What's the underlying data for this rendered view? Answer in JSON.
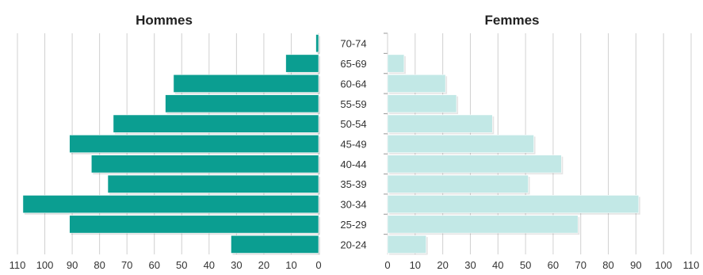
{
  "chart_data": [
    {
      "type": "bar",
      "orientation": "horizontal",
      "direction": "reversed",
      "title": "Hommes",
      "categories": [
        "20-24",
        "25-29",
        "30-34",
        "35-39",
        "40-44",
        "45-49",
        "50-54",
        "55-59",
        "60-64",
        "65-69",
        "70-74"
      ],
      "values": [
        32,
        91,
        108,
        77,
        83,
        91,
        75,
        56,
        53,
        12,
        1
      ],
      "xlim": [
        0,
        110
      ],
      "xticks": [
        "0",
        "10",
        "20",
        "30",
        "40",
        "50",
        "60",
        "70",
        "80",
        "90",
        "100",
        "110"
      ],
      "grid": true,
      "color": "#0b9e91"
    },
    {
      "type": "bar",
      "orientation": "horizontal",
      "title": "Femmes",
      "categories": [
        "20-24",
        "25-29",
        "30-34",
        "35-39",
        "40-44",
        "45-49",
        "50-54",
        "55-59",
        "60-64",
        "65-69",
        "70-74"
      ],
      "values": [
        14,
        69,
        91,
        51,
        63,
        53,
        38,
        25,
        21,
        6,
        0
      ],
      "xlim": [
        0,
        110
      ],
      "xticks": [
        "0",
        "10",
        "20",
        "30",
        "40",
        "50",
        "60",
        "70",
        "80",
        "90",
        "100",
        "110"
      ],
      "grid": true,
      "color": "#c2e8e6"
    }
  ]
}
